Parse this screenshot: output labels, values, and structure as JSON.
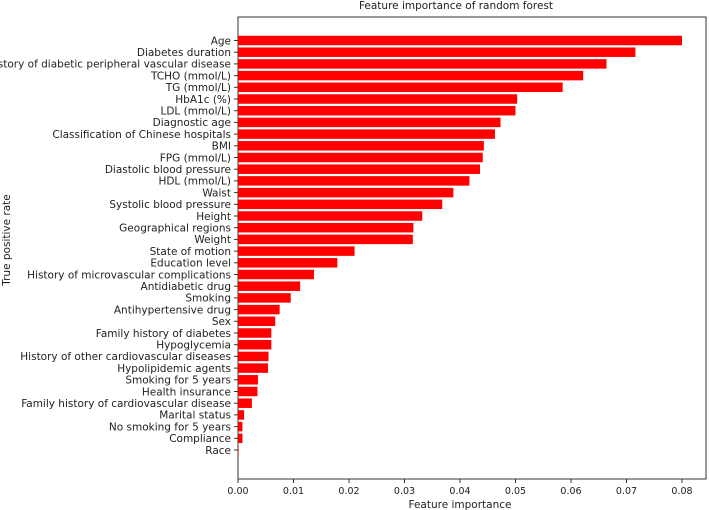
{
  "chart_data": {
    "type": "bar",
    "orientation": "horizontal",
    "title": "Feature importance of random forest",
    "xlabel": "Feature importance",
    "ylabel": "True positive rate",
    "xlim": [
      0,
      0.085
    ],
    "xticks": [
      "0.00",
      "0.01",
      "0.02",
      "0.03",
      "0.04",
      "0.05",
      "0.06",
      "0.07",
      "0.08"
    ],
    "grid": false,
    "bar_color": "#ff0000",
    "categories": [
      "Age",
      "Diabetes duration",
      "History of diabetic peripheral vascular disease",
      "TCHO (mmol/L)",
      "TG (mmol/L)",
      "HbA1c (%)",
      "LDL (mmol/L)",
      "Diagnostic age",
      "Classification of Chinese hospitals",
      "BMI",
      "FPG (mmol/L)",
      "Diastolic blood pressure",
      "HDL (mmol/L)",
      "Waist",
      "Systolic blood pressure",
      "Height",
      "Geographical regions",
      "Weight",
      "State of motion",
      "Education level",
      "History of microvascular complications",
      "Antidiabetic drug",
      "Smoking",
      "Antihypertensive drug",
      "Sex",
      "Family history of diabetes",
      "Hypoglycemia",
      "History of other cardiovascular diseases",
      "Hypolipidemic agents",
      "Smoking for 5 years",
      "Health insurance",
      "Family history of cardiovascular disease",
      "Marital status",
      "No smoking for 5 years",
      "Compliance",
      "Race"
    ],
    "values": [
      0.08,
      0.0716,
      0.0664,
      0.0622,
      0.0585,
      0.0503,
      0.05,
      0.0473,
      0.0463,
      0.0443,
      0.0441,
      0.0436,
      0.0417,
      0.0388,
      0.0368,
      0.0332,
      0.0316,
      0.0315,
      0.021,
      0.0179,
      0.0137,
      0.0112,
      0.0095,
      0.0075,
      0.0067,
      0.006,
      0.006,
      0.0055,
      0.0054,
      0.0036,
      0.0035,
      0.0025,
      0.0011,
      0.0008,
      0.0008,
      0.0001
    ]
  }
}
